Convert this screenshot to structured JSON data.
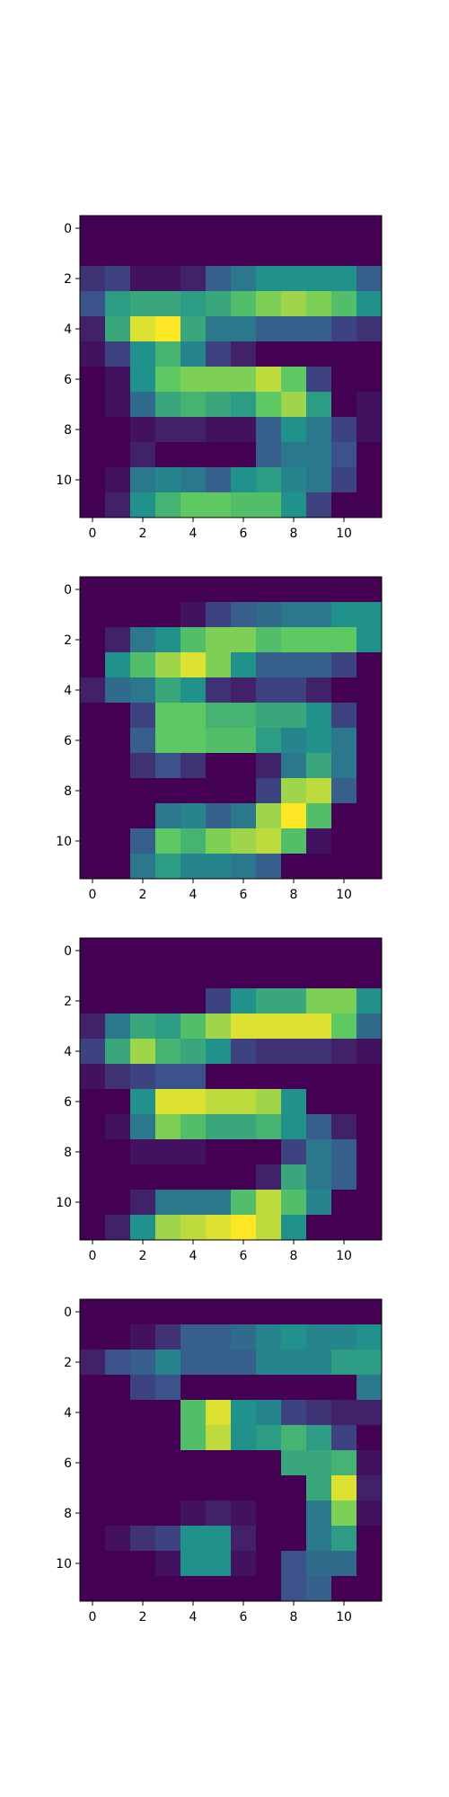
{
  "colors": {
    "background": "#ffffff",
    "axis": "#000000",
    "colormap": "viridis",
    "colormap_stops": [
      "#440154",
      "#3b528b",
      "#21918c",
      "#5ec962",
      "#fde725"
    ]
  },
  "chart_data": [
    {
      "type": "heatmap",
      "title": "",
      "xlabel": "",
      "ylabel": "",
      "xlim": [
        -0.5,
        11.5
      ],
      "ylim": [
        11.5,
        -0.5
      ],
      "xticks": [
        "0",
        "2",
        "4",
        "6",
        "8",
        "10"
      ],
      "yticks": [
        "0",
        "2",
        "4",
        "6",
        "8",
        "10"
      ],
      "grid": false,
      "values": [
        [
          0.0,
          0.0,
          0.0,
          0.0,
          0.0,
          0.0,
          0.0,
          0.0,
          0.0,
          0.0,
          0.0,
          0.0
        ],
        [
          0.0,
          0.0,
          0.0,
          0.0,
          0.0,
          0.0,
          0.0,
          0.0,
          0.0,
          0.0,
          0.0,
          0.0
        ],
        [
          0.15,
          0.2,
          0.05,
          0.05,
          0.1,
          0.3,
          0.4,
          0.5,
          0.5,
          0.5,
          0.5,
          0.3
        ],
        [
          0.25,
          0.55,
          0.6,
          0.6,
          0.55,
          0.6,
          0.7,
          0.8,
          0.85,
          0.8,
          0.7,
          0.5
        ],
        [
          0.1,
          0.6,
          0.95,
          1.0,
          0.6,
          0.4,
          0.4,
          0.3,
          0.3,
          0.3,
          0.2,
          0.15
        ],
        [
          0.05,
          0.2,
          0.5,
          0.65,
          0.45,
          0.2,
          0.1,
          0.0,
          0.0,
          0.0,
          0.0,
          0.0
        ],
        [
          0.0,
          0.05,
          0.5,
          0.75,
          0.8,
          0.8,
          0.8,
          0.9,
          0.75,
          0.2,
          0.0,
          0.0
        ],
        [
          0.0,
          0.05,
          0.35,
          0.6,
          0.65,
          0.6,
          0.55,
          0.75,
          0.85,
          0.55,
          0.0,
          0.05
        ],
        [
          0.0,
          0.0,
          0.05,
          0.1,
          0.1,
          0.05,
          0.05,
          0.3,
          0.5,
          0.4,
          0.2,
          0.05
        ],
        [
          0.0,
          0.0,
          0.1,
          0.0,
          0.0,
          0.0,
          0.0,
          0.3,
          0.4,
          0.4,
          0.25,
          0.0
        ],
        [
          0.0,
          0.05,
          0.4,
          0.45,
          0.4,
          0.3,
          0.5,
          0.55,
          0.45,
          0.4,
          0.2,
          0.0
        ],
        [
          0.0,
          0.1,
          0.5,
          0.65,
          0.75,
          0.75,
          0.7,
          0.7,
          0.5,
          0.2,
          0.0,
          0.0
        ]
      ]
    },
    {
      "type": "heatmap",
      "title": "",
      "xlabel": "",
      "ylabel": "",
      "xlim": [
        -0.5,
        11.5
      ],
      "ylim": [
        11.5,
        -0.5
      ],
      "xticks": [
        "0",
        "2",
        "4",
        "6",
        "8",
        "10"
      ],
      "yticks": [
        "0",
        "2",
        "4",
        "6",
        "8",
        "10"
      ],
      "grid": false,
      "values": [
        [
          0.0,
          0.0,
          0.0,
          0.0,
          0.0,
          0.0,
          0.0,
          0.0,
          0.0,
          0.0,
          0.0,
          0.0
        ],
        [
          0.0,
          0.0,
          0.0,
          0.0,
          0.05,
          0.2,
          0.3,
          0.35,
          0.4,
          0.4,
          0.5,
          0.5
        ],
        [
          0.0,
          0.1,
          0.4,
          0.5,
          0.7,
          0.8,
          0.8,
          0.7,
          0.75,
          0.75,
          0.75,
          0.5
        ],
        [
          0.0,
          0.5,
          0.7,
          0.85,
          0.95,
          0.8,
          0.5,
          0.3,
          0.3,
          0.3,
          0.2,
          0.0
        ],
        [
          0.1,
          0.35,
          0.4,
          0.6,
          0.5,
          0.15,
          0.1,
          0.2,
          0.2,
          0.1,
          0.0,
          0.0
        ],
        [
          0.0,
          0.0,
          0.2,
          0.75,
          0.75,
          0.65,
          0.65,
          0.6,
          0.6,
          0.5,
          0.2,
          0.0
        ],
        [
          0.0,
          0.0,
          0.3,
          0.75,
          0.75,
          0.7,
          0.7,
          0.55,
          0.45,
          0.5,
          0.4,
          0.0
        ],
        [
          0.0,
          0.0,
          0.15,
          0.25,
          0.15,
          0.0,
          0.0,
          0.1,
          0.4,
          0.6,
          0.4,
          0.0
        ],
        [
          0.0,
          0.0,
          0.0,
          0.0,
          0.0,
          0.0,
          0.0,
          0.2,
          0.85,
          0.9,
          0.3,
          0.0
        ],
        [
          0.0,
          0.0,
          0.0,
          0.4,
          0.45,
          0.3,
          0.4,
          0.85,
          1.0,
          0.7,
          0.0,
          0.0
        ],
        [
          0.0,
          0.0,
          0.3,
          0.75,
          0.65,
          0.8,
          0.85,
          0.9,
          0.7,
          0.05,
          0.0,
          0.0
        ],
        [
          0.0,
          0.0,
          0.4,
          0.55,
          0.45,
          0.45,
          0.4,
          0.3,
          0.0,
          0.0,
          0.0,
          0.0
        ]
      ]
    },
    {
      "type": "heatmap",
      "title": "",
      "xlabel": "",
      "ylabel": "",
      "xlim": [
        -0.5,
        11.5
      ],
      "ylim": [
        11.5,
        -0.5
      ],
      "xticks": [
        "0",
        "2",
        "4",
        "6",
        "8",
        "10"
      ],
      "yticks": [
        "0",
        "2",
        "4",
        "6",
        "8",
        "10"
      ],
      "grid": false,
      "values": [
        [
          0.0,
          0.0,
          0.0,
          0.0,
          0.0,
          0.0,
          0.0,
          0.0,
          0.0,
          0.0,
          0.0,
          0.0
        ],
        [
          0.0,
          0.0,
          0.0,
          0.0,
          0.0,
          0.0,
          0.0,
          0.0,
          0.0,
          0.0,
          0.0,
          0.0
        ],
        [
          0.0,
          0.0,
          0.0,
          0.0,
          0.0,
          0.2,
          0.5,
          0.6,
          0.6,
          0.8,
          0.8,
          0.5
        ],
        [
          0.1,
          0.4,
          0.6,
          0.55,
          0.7,
          0.85,
          0.95,
          0.95,
          0.95,
          0.95,
          0.75,
          0.35
        ],
        [
          0.2,
          0.6,
          0.85,
          0.65,
          0.6,
          0.5,
          0.2,
          0.15,
          0.15,
          0.15,
          0.1,
          0.05
        ],
        [
          0.05,
          0.15,
          0.2,
          0.25,
          0.25,
          0.0,
          0.0,
          0.0,
          0.0,
          0.0,
          0.0,
          0.0
        ],
        [
          0.0,
          0.0,
          0.5,
          0.95,
          0.95,
          0.9,
          0.9,
          0.85,
          0.5,
          0.0,
          0.0,
          0.0
        ],
        [
          0.0,
          0.05,
          0.4,
          0.8,
          0.7,
          0.6,
          0.6,
          0.65,
          0.5,
          0.3,
          0.1,
          0.0
        ],
        [
          0.0,
          0.0,
          0.05,
          0.05,
          0.05,
          0.0,
          0.0,
          0.0,
          0.2,
          0.4,
          0.3,
          0.0
        ],
        [
          0.0,
          0.0,
          0.0,
          0.0,
          0.0,
          0.0,
          0.0,
          0.1,
          0.6,
          0.4,
          0.3,
          0.0
        ],
        [
          0.0,
          0.0,
          0.1,
          0.4,
          0.4,
          0.4,
          0.7,
          0.9,
          0.7,
          0.45,
          0.0,
          0.0
        ],
        [
          0.0,
          0.1,
          0.5,
          0.85,
          0.9,
          0.95,
          1.0,
          0.9,
          0.5,
          0.0,
          0.0,
          0.0
        ]
      ]
    },
    {
      "type": "heatmap",
      "title": "",
      "xlabel": "",
      "ylabel": "",
      "xlim": [
        -0.5,
        11.5
      ],
      "ylim": [
        11.5,
        -0.5
      ],
      "xticks": [
        "0",
        "2",
        "4",
        "6",
        "8",
        "10"
      ],
      "yticks": [
        "0",
        "2",
        "4",
        "6",
        "8",
        "10"
      ],
      "grid": false,
      "values": [
        [
          0.0,
          0.0,
          0.0,
          0.0,
          0.0,
          0.0,
          0.0,
          0.0,
          0.0,
          0.0,
          0.0,
          0.0
        ],
        [
          0.0,
          0.0,
          0.05,
          0.15,
          0.3,
          0.3,
          0.35,
          0.45,
          0.5,
          0.45,
          0.45,
          0.5
        ],
        [
          0.1,
          0.25,
          0.3,
          0.45,
          0.3,
          0.3,
          0.3,
          0.45,
          0.45,
          0.45,
          0.55,
          0.55
        ],
        [
          0.0,
          0.0,
          0.2,
          0.25,
          0.0,
          0.0,
          0.0,
          0.0,
          0.0,
          0.0,
          0.0,
          0.4
        ],
        [
          0.0,
          0.0,
          0.0,
          0.0,
          0.7,
          0.95,
          0.5,
          0.45,
          0.2,
          0.15,
          0.1,
          0.1
        ],
        [
          0.0,
          0.0,
          0.0,
          0.0,
          0.7,
          0.9,
          0.5,
          0.55,
          0.65,
          0.55,
          0.2,
          0.0
        ],
        [
          0.0,
          0.0,
          0.0,
          0.0,
          0.0,
          0.0,
          0.0,
          0.0,
          0.6,
          0.6,
          0.65,
          0.05
        ],
        [
          0.0,
          0.0,
          0.0,
          0.0,
          0.0,
          0.0,
          0.0,
          0.0,
          0.0,
          0.6,
          0.95,
          0.1
        ],
        [
          0.0,
          0.0,
          0.0,
          0.0,
          0.05,
          0.1,
          0.05,
          0.0,
          0.0,
          0.4,
          0.8,
          0.05
        ],
        [
          0.0,
          0.05,
          0.15,
          0.2,
          0.5,
          0.5,
          0.1,
          0.0,
          0.0,
          0.4,
          0.55,
          0.0
        ],
        [
          0.0,
          0.0,
          0.0,
          0.05,
          0.5,
          0.5,
          0.05,
          0.0,
          0.25,
          0.35,
          0.35,
          0.0
        ],
        [
          0.0,
          0.0,
          0.0,
          0.0,
          0.0,
          0.0,
          0.0,
          0.0,
          0.25,
          0.3,
          0.0,
          0.0
        ]
      ]
    }
  ]
}
